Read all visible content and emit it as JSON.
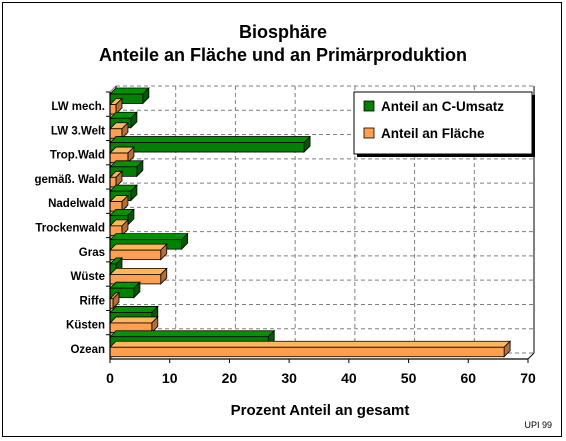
{
  "chart_data": {
    "type": "bar",
    "orientation": "horizontal",
    "title": "Biosphäre",
    "subtitle": "Anteile an Fläche und an Primärproduktion",
    "xlabel": "Prozent Anteil an gesamt",
    "ylabel": "",
    "xlim": [
      0,
      70
    ],
    "xticks": [
      0,
      10,
      20,
      30,
      40,
      50,
      60,
      70
    ],
    "grid": true,
    "legend_position": "top-right",
    "categories": [
      "LW mech.",
      "LW 3.Welt",
      "Trop.Wald",
      "gemäß. Wald",
      "Nadelwald",
      "Trockenwald",
      "Gras",
      "Wüste",
      "Riffe",
      "Küsten",
      "Ozean"
    ],
    "series": [
      {
        "name": "Anteil an C-Umsatz",
        "color": "#008000",
        "values": [
          5.5,
          3.5,
          32.5,
          4.5,
          3.5,
          3.0,
          12.0,
          1.0,
          4.0,
          7.0,
          26.5
        ]
      },
      {
        "name": "Anteil an Fläche",
        "color": "#ff9f4f",
        "values": [
          1.0,
          2.0,
          3.0,
          1.0,
          2.0,
          2.0,
          8.5,
          8.5,
          0.5,
          7.0,
          66.0
        ]
      }
    ],
    "credit": "UPI 99"
  }
}
